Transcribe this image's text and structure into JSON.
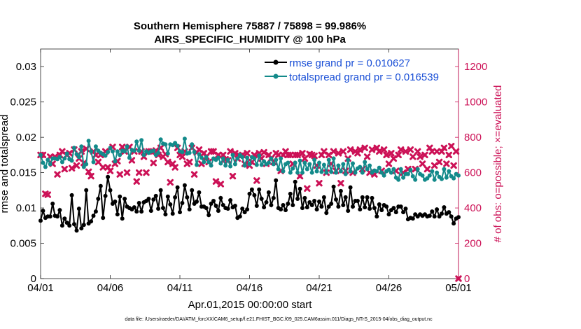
{
  "chart_data": {
    "type": "line",
    "title": "Southern Hemisphere 75887 / 75898 = 99.986%",
    "subtitle": "AIRS_SPECIFIC_HUMIDITY @ 100 hPa",
    "xlabel": "Apr.01,2015 00:00:00 start",
    "ylabel": "rmse and totalspread",
    "ylabel_right": "# of obs: o=possible; ×=evaluated",
    "x_tick_labels": [
      "04/01",
      "04/06",
      "04/11",
      "04/16",
      "04/21",
      "04/26",
      "05/01"
    ],
    "y_tick_labels": [
      "0",
      "0.005",
      "0.01",
      "0.015",
      "0.02",
      "0.025",
      "0.03"
    ],
    "y_right_tick_labels": [
      "0",
      "200",
      "400",
      "600",
      "800",
      "1000",
      "1200"
    ],
    "xlim": [
      0,
      30
    ],
    "ylim": [
      0,
      0.0325
    ],
    "ylim_right": [
      0,
      1300
    ],
    "footer": "data file: /Users/raeder/DAI/ATM_forcXX/CAM6_setup/f.e21.FHIST_BGC.f09_025.CAM6assim.011/Diags_NTrS_2015-04/obs_diag_output.nc",
    "colors": {
      "rmse": "#000000",
      "spread": "#138a8a",
      "obs": "#cc1156",
      "legend_text": "#1a4fd6"
    },
    "series": [
      {
        "name": "rmse grand pr = 0.010627",
        "values": [
          0.0082,
          0.0096,
          0.0086,
          0.0088,
          0.0088,
          0.0106,
          0.0089,
          0.0088,
          0.0097,
          0.0075,
          0.0085,
          0.0079,
          0.0075,
          0.0118,
          0.0077,
          0.0068,
          0.0099,
          0.0071,
          0.0076,
          0.0125,
          0.0078,
          0.0081,
          0.0089,
          0.0095,
          0.0113,
          0.0131,
          0.0086,
          0.0117,
          0.0144,
          0.0125,
          0.0106,
          0.0109,
          0.0091,
          0.0116,
          0.0085,
          0.0113,
          0.0102,
          0.01,
          0.0098,
          0.0101,
          0.0095,
          0.0107,
          0.0095,
          0.0108,
          0.011,
          0.0113,
          0.0096,
          0.0112,
          0.0117,
          0.0099,
          0.0125,
          0.01,
          0.0091,
          0.0116,
          0.0105,
          0.0092,
          0.0115,
          0.0129,
          0.0094,
          0.0107,
          0.0132,
          0.0115,
          0.0098,
          0.0125,
          0.0106,
          0.0109,
          0.0122,
          0.0102,
          0.0102,
          0.01,
          0.009,
          0.0106,
          0.011,
          0.0103,
          0.0096,
          0.0114,
          0.0104,
          0.01,
          0.0099,
          0.0111,
          0.0101,
          0.0103,
          0.0086,
          0.0088,
          0.0099,
          0.0094,
          0.0098,
          0.012,
          0.0126,
          0.0118,
          0.0103,
          0.0126,
          0.0113,
          0.0101,
          0.0108,
          0.0122,
          0.0104,
          0.0114,
          0.0139,
          0.01,
          0.0098,
          0.0104,
          0.0097,
          0.0106,
          0.012,
          0.0104,
          0.0137,
          0.0113,
          0.0127,
          0.01,
          0.0114,
          0.0101,
          0.0108,
          0.0104,
          0.011,
          0.0098,
          0.0109,
          0.0102,
          0.0115,
          0.0093,
          0.0102,
          0.0106,
          0.013,
          0.0112,
          0.0102,
          0.0124,
          0.0104,
          0.0115,
          0.0096,
          0.0129,
          0.0102,
          0.011,
          0.011,
          0.0098,
          0.0115,
          0.0101,
          0.0115,
          0.0099,
          0.0114,
          0.01,
          0.0088,
          0.0105,
          0.0097,
          0.0104,
          0.0102,
          0.0091,
          0.0097,
          0.01,
          0.0094,
          0.0102,
          0.0102,
          0.0094,
          0.0099,
          0.0084,
          0.0086,
          0.0085,
          0.0091,
          0.0088,
          0.0091,
          0.0089,
          0.0091,
          0.0088,
          0.0089,
          0.0095,
          0.0088,
          0.0098,
          0.0088,
          0.0092,
          0.0101,
          0.0092,
          0.0094,
          0.0088,
          0.0078,
          0.0085,
          0.0087
        ]
      },
      {
        "name": "totalspread grand pr = 0.016539",
        "values": [
          0.0175,
          0.0164,
          0.0158,
          0.0168,
          0.0162,
          0.017,
          0.017,
          0.0169,
          0.0172,
          0.0165,
          0.017,
          0.0177,
          0.0169,
          0.0167,
          0.0185,
          0.0176,
          0.0172,
          0.0187,
          0.0158,
          0.0162,
          0.0195,
          0.018,
          0.0165,
          0.0187,
          0.0181,
          0.0178,
          0.0176,
          0.0174,
          0.0179,
          0.0185,
          0.018,
          0.0166,
          0.018,
          0.0175,
          0.0181,
          0.018,
          0.0187,
          0.0171,
          0.0182,
          0.0181,
          0.0194,
          0.0181,
          0.0196,
          0.0175,
          0.018,
          0.0178,
          0.018,
          0.0181,
          0.0175,
          0.0178,
          0.0197,
          0.0191,
          0.019,
          0.0177,
          0.019,
          0.0189,
          0.0192,
          0.0188,
          0.018,
          0.0179,
          0.0198,
          0.0177,
          0.0178,
          0.019,
          0.0179,
          0.0161,
          0.0176,
          0.0171,
          0.0165,
          0.0172,
          0.0165,
          0.016,
          0.017,
          0.0168,
          0.0171,
          0.0163,
          0.017,
          0.016,
          0.0168,
          0.0159,
          0.0175,
          0.0162,
          0.017,
          0.0175,
          0.0172,
          0.016,
          0.0171,
          0.0162,
          0.0172,
          0.017,
          0.0161,
          0.0174,
          0.0161,
          0.0166,
          0.0162,
          0.0164,
          0.017,
          0.0162,
          0.0168,
          0.0155,
          0.017,
          0.0152,
          0.0162,
          0.0164,
          0.015,
          0.0156,
          0.0164,
          0.015,
          0.0167,
          0.015,
          0.0164,
          0.0155,
          0.0162,
          0.015,
          0.0168,
          0.0152,
          0.0164,
          0.0151,
          0.0161,
          0.015,
          0.0168,
          0.0151,
          0.017,
          0.015,
          0.016,
          0.0152,
          0.0162,
          0.0148,
          0.0168,
          0.0152,
          0.0163,
          0.015,
          0.0156,
          0.0158,
          0.015,
          0.0165,
          0.0155,
          0.016,
          0.015,
          0.0153,
          0.0152,
          0.0157,
          0.015,
          0.0146,
          0.0152,
          0.0154,
          0.015,
          0.0155,
          0.0143,
          0.014,
          0.0155,
          0.0143,
          0.0148,
          0.0148,
          0.0154,
          0.0145,
          0.014,
          0.0155,
          0.0148,
          0.0146,
          0.014,
          0.0142,
          0.0146,
          0.0152,
          0.014,
          0.015,
          0.0144,
          0.0141,
          0.0155,
          0.0143,
          0.0152,
          0.0145,
          0.0142,
          0.0148,
          0.0146
        ]
      },
      {
        "name": "# of obs evaluated",
        "values": [
          700,
          700,
          480,
          475,
          690,
          650,
          690,
          590,
          700,
          720,
          620,
          700,
          710,
          625,
          730,
          640,
          680,
          720,
          655,
          735,
          605,
          580,
          720,
          700,
          660,
          700,
          630,
          720,
          630,
          610,
          745,
          650,
          665,
          590,
          745,
          720,
          600,
          745,
          670,
          720,
          550,
          600,
          720,
          690,
          600,
          720,
          720,
          655,
          725,
          700,
          740,
          690,
          705,
          660,
          545,
          650,
          630,
          740,
          700,
          690,
          720,
          650,
          660,
          740,
          590,
          715,
          730,
          650,
          710,
          690,
          660,
          720,
          720,
          550,
          700,
          535,
          700,
          675,
          670,
          720,
          580,
          710,
          680,
          695,
          700,
          650,
          710,
          640,
          660,
          700,
          555,
          710,
          680,
          715,
          650,
          700,
          680,
          660,
          710,
          700,
          610,
          700,
          720,
          700,
          700,
          650,
          700,
          700,
          580,
          710,
          680,
          510,
          705,
          700,
          695,
          640,
          540,
          700,
          720,
          600,
          700,
          650,
          720,
          610,
          710,
          540,
          720,
          610,
          680,
          730,
          600,
          720,
          710,
          730,
          620,
          740,
          690,
          600,
          730,
          590,
          740,
          720,
          610,
          730,
          700,
          650,
          710,
          680,
          610,
          700,
          730,
          600,
          720,
          620,
          730,
          690,
          620,
          720,
          690,
          650,
          700,
          620,
          740,
          720,
          640,
          720,
          660,
          720,
          740,
          650,
          700,
          750,
          640,
          720,
          0
        ]
      }
    ]
  }
}
